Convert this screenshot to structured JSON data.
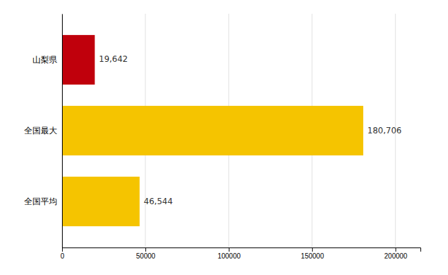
{
  "chart_data": {
    "type": "bar",
    "orientation": "horizontal",
    "categories": [
      "山梨県",
      "全国最大",
      "全国平均"
    ],
    "values": [
      19642,
      180706,
      46544
    ],
    "value_labels": [
      "19,642",
      "180,706",
      "46,544"
    ],
    "data_labels": true,
    "colors": [
      "#C0000C",
      "#F5C400",
      "#F5C400"
    ],
    "xlim": [
      0,
      215000
    ],
    "xticks": [
      0,
      50000,
      100000,
      150000,
      200000
    ],
    "grid": true
  }
}
